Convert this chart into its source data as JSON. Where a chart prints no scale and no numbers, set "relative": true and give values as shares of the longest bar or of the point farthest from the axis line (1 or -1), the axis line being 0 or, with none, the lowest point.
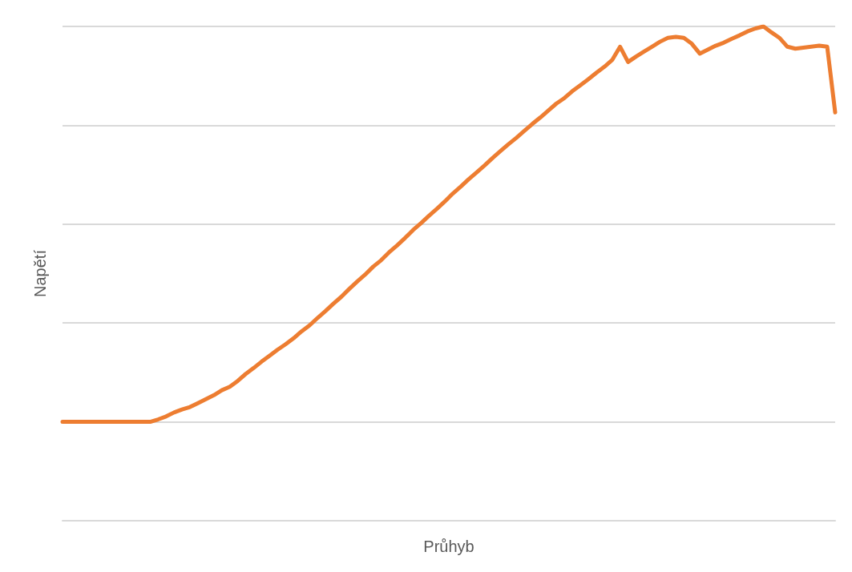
{
  "chart_data": {
    "type": "line",
    "xlabel": "Průhyb",
    "ylabel": "Napětí",
    "relative": true,
    "grid": "y",
    "marker": "none",
    "line_style": "solid",
    "categories": [
      null,
      null,
      null,
      null,
      null,
      null,
      null,
      null,
      null,
      null,
      null,
      null,
      null,
      null,
      null,
      null,
      null,
      null,
      null,
      null,
      null,
      null,
      null,
      null,
      null,
      null,
      null,
      null,
      null,
      null,
      null,
      null,
      null,
      null,
      null,
      null,
      null,
      null,
      null,
      null,
      null,
      null,
      null,
      null,
      null,
      null,
      null,
      null,
      null,
      null,
      null,
      null,
      null,
      null,
      null,
      null,
      null,
      null,
      null,
      null,
      null,
      null,
      null,
      null,
      null,
      null,
      null,
      null,
      null,
      null,
      null,
      null,
      null,
      null,
      null,
      null,
      null,
      null,
      null,
      null,
      null,
      null,
      null,
      null,
      null,
      null,
      null,
      null,
      null,
      null,
      null,
      null,
      null,
      null,
      null,
      null,
      null,
      null
    ],
    "series": [
      {
        "color": "#ed7d31",
        "values": [
          0.2,
          0.2,
          0.2,
          0.2,
          0.2,
          0.2,
          0.2,
          0.2,
          0.2,
          0.2,
          0.2,
          0.2,
          0.205,
          0.211,
          0.219,
          0.225,
          0.23,
          0.238,
          0.246,
          0.254,
          0.264,
          0.271,
          0.283,
          0.297,
          0.309,
          0.322,
          0.334,
          0.346,
          0.357,
          0.369,
          0.383,
          0.395,
          0.41,
          0.424,
          0.439,
          0.453,
          0.469,
          0.484,
          0.498,
          0.514,
          0.527,
          0.543,
          0.557,
          0.572,
          0.588,
          0.602,
          0.617,
          0.631,
          0.646,
          0.662,
          0.676,
          0.691,
          0.705,
          0.719,
          0.734,
          0.748,
          0.762,
          0.775,
          0.789,
          0.803,
          0.816,
          0.83,
          0.844,
          0.855,
          0.869,
          0.881,
          0.893,
          0.906,
          0.918,
          0.932,
          0.959,
          0.928,
          0.939,
          0.949,
          0.959,
          0.969,
          0.977,
          0.979,
          0.977,
          0.965,
          0.945,
          0.953,
          0.961,
          0.967,
          0.975,
          0.982,
          0.99,
          0.996,
          1.0,
          0.988,
          0.977,
          0.959,
          0.955,
          0.957,
          0.959,
          0.961,
          0.959,
          0.826
        ]
      }
    ]
  }
}
